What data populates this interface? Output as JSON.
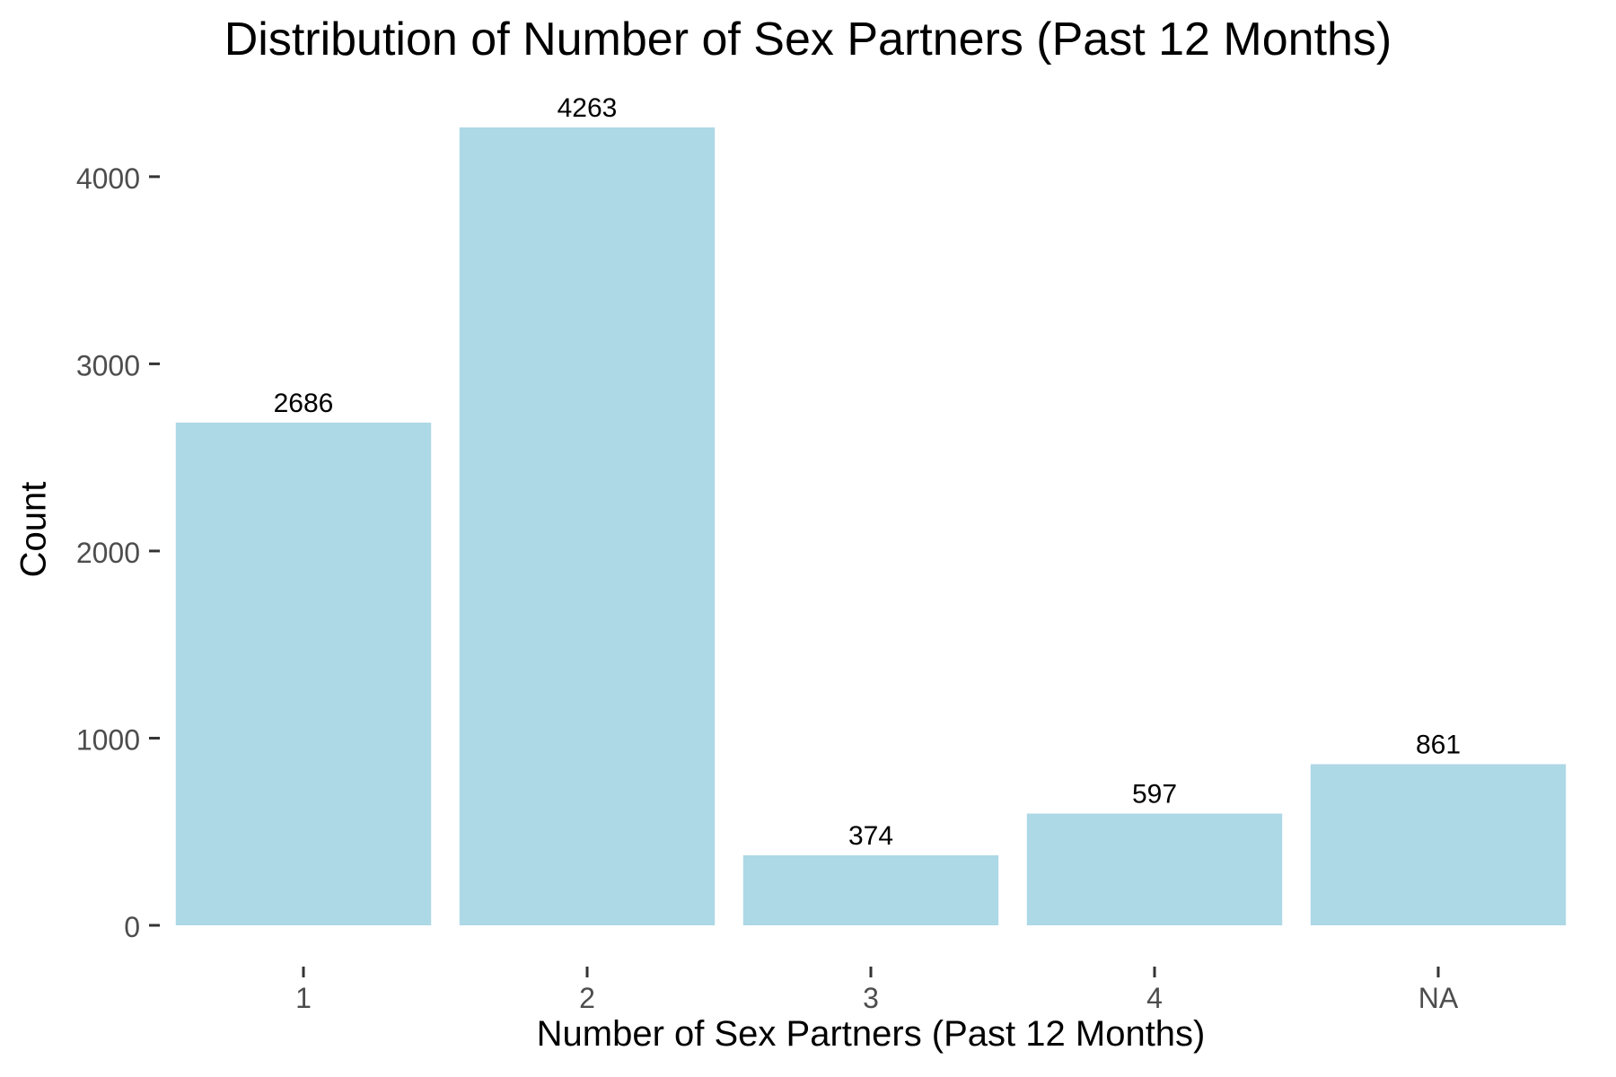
{
  "chart_data": {
    "type": "bar",
    "title": "Distribution of Number of Sex Partners (Past 12 Months)",
    "xlabel": "Number of Sex Partners (Past 12 Months)",
    "ylabel": "Count",
    "categories": [
      "1",
      "2",
      "3",
      "4",
      "NA"
    ],
    "values": [
      2686,
      4263,
      374,
      597,
      861
    ],
    "data_labels": [
      "2686",
      "4263",
      "374",
      "597",
      "861"
    ],
    "y_ticks": [
      0,
      1000,
      2000,
      3000,
      4000
    ],
    "ylim": [
      0,
      4263
    ],
    "grid": false,
    "bar_color": "#add8e6"
  }
}
